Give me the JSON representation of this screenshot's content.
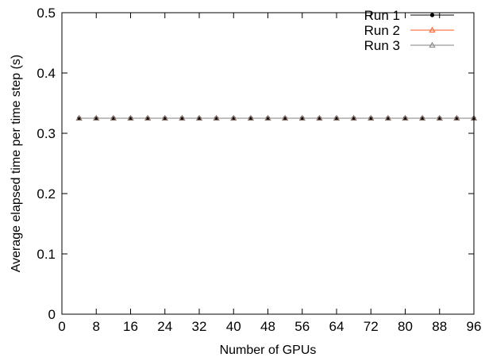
{
  "chart_data": {
    "type": "line",
    "title": "",
    "xlabel": "Number of GPUs",
    "ylabel": "Average elapsed time per time step (s)",
    "xlim": [
      0,
      96
    ],
    "ylim": [
      0,
      0.5
    ],
    "xticks": [
      "0",
      "8",
      "16",
      "24",
      "32",
      "40",
      "48",
      "56",
      "64",
      "72",
      "80",
      "88",
      "96"
    ],
    "yticks": [
      "0",
      "0.1",
      "0.2",
      "0.3",
      "0.4",
      "0.5"
    ],
    "grid": false,
    "legend_position": "top-right",
    "x": [
      4,
      8,
      12,
      16,
      20,
      24,
      28,
      32,
      36,
      40,
      44,
      48,
      52,
      56,
      60,
      64,
      68,
      72,
      76,
      80,
      84,
      88,
      92,
      96
    ],
    "series": [
      {
        "name": "Run 1",
        "color": "#000000",
        "marker": "circle",
        "values": [
          0.325,
          0.325,
          0.325,
          0.325,
          0.325,
          0.325,
          0.325,
          0.325,
          0.325,
          0.325,
          0.325,
          0.325,
          0.325,
          0.325,
          0.325,
          0.325,
          0.325,
          0.325,
          0.325,
          0.325,
          0.325,
          0.325,
          0.325,
          0.325
        ]
      },
      {
        "name": "Run 2",
        "color": "#ff5a1e",
        "marker": "triangle",
        "values": [
          0.325,
          0.325,
          0.325,
          0.325,
          0.325,
          0.325,
          0.325,
          0.325,
          0.325,
          0.325,
          0.325,
          0.325,
          0.325,
          0.325,
          0.325,
          0.325,
          0.325,
          0.325,
          0.325,
          0.325,
          0.325,
          0.325,
          0.325,
          0.325
        ]
      },
      {
        "name": "Run 3",
        "color": "#808080",
        "marker": "triangle",
        "values": [
          0.325,
          0.325,
          0.325,
          0.325,
          0.325,
          0.325,
          0.325,
          0.325,
          0.325,
          0.325,
          0.325,
          0.325,
          0.325,
          0.325,
          0.325,
          0.325,
          0.325,
          0.325,
          0.325,
          0.325,
          0.325,
          0.325,
          0.325,
          0.325
        ]
      }
    ]
  }
}
